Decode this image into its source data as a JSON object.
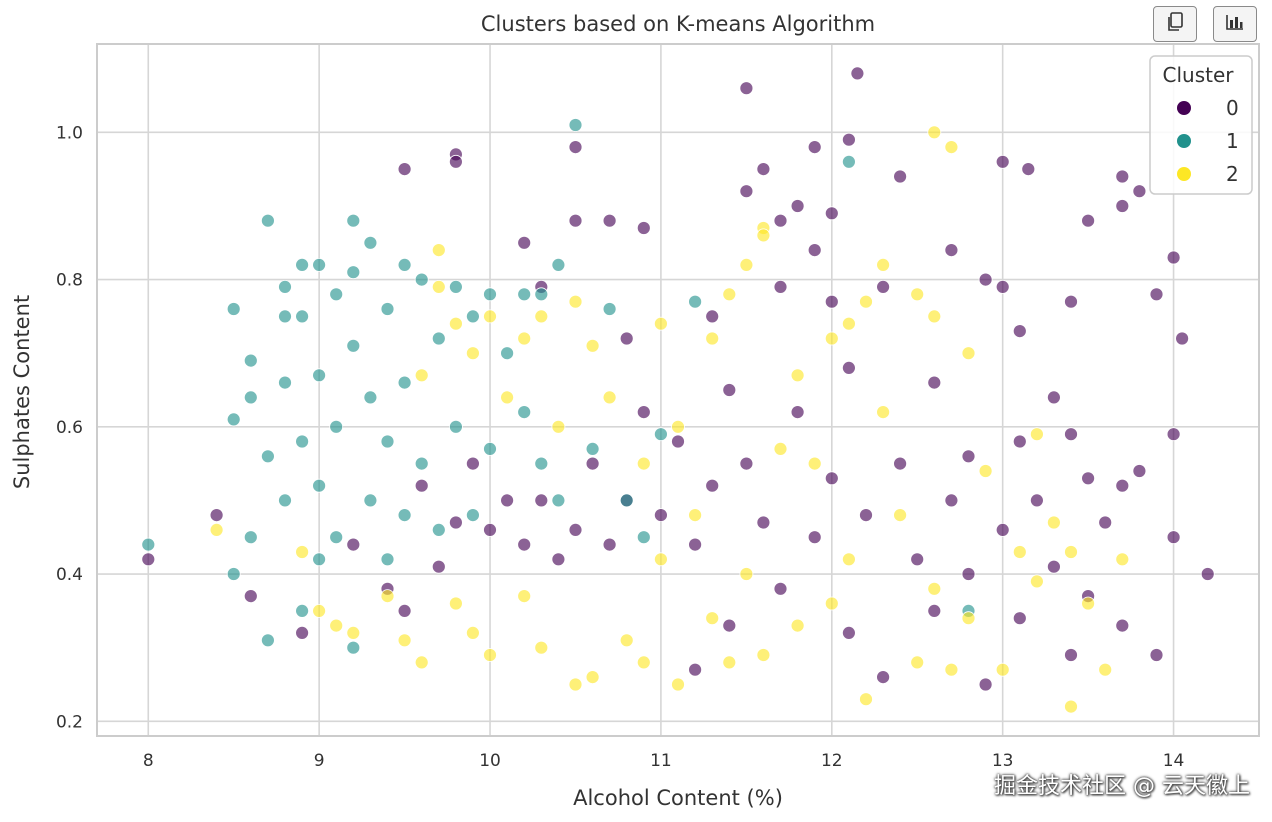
{
  "toolbar": {
    "copy_icon": "copy-icon",
    "chart_icon": "bar-chart-icon"
  },
  "watermark": "掘金技术社区 @ 云天徽上",
  "colors": {
    "cluster0": "#440154",
    "cluster1": "#21918c",
    "cluster2": "#fde725",
    "grid": "#d6d6d6",
    "frame": "#cccccc"
  },
  "chart_data": {
    "type": "scatter",
    "title": "Clusters based on K-means Algorithm",
    "xlabel": "Alcohol Content (%)",
    "ylabel": "Sulphates Content",
    "xlim": [
      7.7,
      14.5
    ],
    "ylim": [
      0.18,
      1.12
    ],
    "xticks": [
      8,
      9,
      10,
      11,
      12,
      13,
      14
    ],
    "yticks": [
      0.2,
      0.4,
      0.6,
      0.8,
      1.0
    ],
    "grid": true,
    "legend": {
      "title": "Cluster",
      "placement": "top-right",
      "entries": [
        "0",
        "1",
        "2"
      ]
    },
    "series": [
      {
        "name": "0",
        "points": [
          [
            8.0,
            0.42
          ],
          [
            8.4,
            0.48
          ],
          [
            8.6,
            0.37
          ],
          [
            8.9,
            0.32
          ],
          [
            9.2,
            0.44
          ],
          [
            9.4,
            0.38
          ],
          [
            9.5,
            0.95
          ],
          [
            9.5,
            0.35
          ],
          [
            9.6,
            0.52
          ],
          [
            9.7,
            0.41
          ],
          [
            9.8,
            0.97
          ],
          [
            9.8,
            0.96
          ],
          [
            9.8,
            0.47
          ],
          [
            9.9,
            0.55
          ],
          [
            10.0,
            0.46
          ],
          [
            10.1,
            0.5
          ],
          [
            10.2,
            0.85
          ],
          [
            10.2,
            0.44
          ],
          [
            10.3,
            0.5
          ],
          [
            10.3,
            0.79
          ],
          [
            10.4,
            0.42
          ],
          [
            10.5,
            0.98
          ],
          [
            10.5,
            0.88
          ],
          [
            10.5,
            0.46
          ],
          [
            10.6,
            0.55
          ],
          [
            10.7,
            0.88
          ],
          [
            10.7,
            0.44
          ],
          [
            10.8,
            0.72
          ],
          [
            10.8,
            0.5
          ],
          [
            10.9,
            0.87
          ],
          [
            10.9,
            0.62
          ],
          [
            11.0,
            0.48
          ],
          [
            11.1,
            0.58
          ],
          [
            11.2,
            0.44
          ],
          [
            11.2,
            0.27
          ],
          [
            11.3,
            0.75
          ],
          [
            11.3,
            0.52
          ],
          [
            11.4,
            0.65
          ],
          [
            11.4,
            0.33
          ],
          [
            11.5,
            1.06
          ],
          [
            11.5,
            0.92
          ],
          [
            11.5,
            0.55
          ],
          [
            11.6,
            0.95
          ],
          [
            11.6,
            0.47
          ],
          [
            11.7,
            0.88
          ],
          [
            11.7,
            0.79
          ],
          [
            11.7,
            0.38
          ],
          [
            11.8,
            0.9
          ],
          [
            11.8,
            0.62
          ],
          [
            11.9,
            0.84
          ],
          [
            11.9,
            0.98
          ],
          [
            11.9,
            0.45
          ],
          [
            12.0,
            0.89
          ],
          [
            12.0,
            0.77
          ],
          [
            12.0,
            0.53
          ],
          [
            12.1,
            0.99
          ],
          [
            12.1,
            0.68
          ],
          [
            12.1,
            0.32
          ],
          [
            12.15,
            1.08
          ],
          [
            12.2,
            0.48
          ],
          [
            12.3,
            0.79
          ],
          [
            12.3,
            0.26
          ],
          [
            12.4,
            0.94
          ],
          [
            12.4,
            0.55
          ],
          [
            12.5,
            0.42
          ],
          [
            12.6,
            0.66
          ],
          [
            12.6,
            0.35
          ],
          [
            12.7,
            0.84
          ],
          [
            12.7,
            0.5
          ],
          [
            12.8,
            0.56
          ],
          [
            12.8,
            0.4
          ],
          [
            12.9,
            0.8
          ],
          [
            12.9,
            0.25
          ],
          [
            13.0,
            0.96
          ],
          [
            13.0,
            0.79
          ],
          [
            13.0,
            0.46
          ],
          [
            13.1,
            0.73
          ],
          [
            13.1,
            0.58
          ],
          [
            13.1,
            0.34
          ],
          [
            13.15,
            0.95
          ],
          [
            13.2,
            0.5
          ],
          [
            13.3,
            0.64
          ],
          [
            13.3,
            0.41
          ],
          [
            13.4,
            0.77
          ],
          [
            13.4,
            0.59
          ],
          [
            13.4,
            0.29
          ],
          [
            13.5,
            0.88
          ],
          [
            13.5,
            0.53
          ],
          [
            13.5,
            0.37
          ],
          [
            13.6,
            0.47
          ],
          [
            13.7,
            0.94
          ],
          [
            13.7,
            0.9
          ],
          [
            13.7,
            0.52
          ],
          [
            13.7,
            0.33
          ],
          [
            13.8,
            0.92
          ],
          [
            13.8,
            0.54
          ],
          [
            13.9,
            0.78
          ],
          [
            13.9,
            0.29
          ],
          [
            14.0,
            0.83
          ],
          [
            14.0,
            0.59
          ],
          [
            14.0,
            0.45
          ],
          [
            14.05,
            0.72
          ],
          [
            14.2,
            0.4
          ]
        ]
      },
      {
        "name": "1",
        "points": [
          [
            8.0,
            0.44
          ],
          [
            8.5,
            0.76
          ],
          [
            8.5,
            0.61
          ],
          [
            8.5,
            0.4
          ],
          [
            8.6,
            0.69
          ],
          [
            8.6,
            0.64
          ],
          [
            8.6,
            0.45
          ],
          [
            8.7,
            0.88
          ],
          [
            8.7,
            0.56
          ],
          [
            8.7,
            0.31
          ],
          [
            8.8,
            0.79
          ],
          [
            8.8,
            0.75
          ],
          [
            8.8,
            0.66
          ],
          [
            8.8,
            0.5
          ],
          [
            8.9,
            0.82
          ],
          [
            8.9,
            0.75
          ],
          [
            8.9,
            0.58
          ],
          [
            8.9,
            0.35
          ],
          [
            9.0,
            0.82
          ],
          [
            9.0,
            0.67
          ],
          [
            9.0,
            0.52
          ],
          [
            9.0,
            0.42
          ],
          [
            9.1,
            0.78
          ],
          [
            9.1,
            0.6
          ],
          [
            9.1,
            0.45
          ],
          [
            9.2,
            0.88
          ],
          [
            9.2,
            0.81
          ],
          [
            9.2,
            0.71
          ],
          [
            9.2,
            0.3
          ],
          [
            9.3,
            0.85
          ],
          [
            9.3,
            0.64
          ],
          [
            9.3,
            0.5
          ],
          [
            9.4,
            0.76
          ],
          [
            9.4,
            0.58
          ],
          [
            9.4,
            0.42
          ],
          [
            9.5,
            0.82
          ],
          [
            9.5,
            0.66
          ],
          [
            9.5,
            0.48
          ],
          [
            9.6,
            0.8
          ],
          [
            9.6,
            0.55
          ],
          [
            9.7,
            0.72
          ],
          [
            9.7,
            0.46
          ],
          [
            9.8,
            0.79
          ],
          [
            9.8,
            0.6
          ],
          [
            9.9,
            0.75
          ],
          [
            9.9,
            0.48
          ],
          [
            10.0,
            0.78
          ],
          [
            10.0,
            0.57
          ],
          [
            10.1,
            0.7
          ],
          [
            10.2,
            0.78
          ],
          [
            10.2,
            0.62
          ],
          [
            10.3,
            0.78
          ],
          [
            10.3,
            0.55
          ],
          [
            10.4,
            0.82
          ],
          [
            10.4,
            0.5
          ],
          [
            10.5,
            1.01
          ],
          [
            10.6,
            0.57
          ],
          [
            10.7,
            0.76
          ],
          [
            10.8,
            0.5
          ],
          [
            10.9,
            0.45
          ],
          [
            11.0,
            0.59
          ],
          [
            11.2,
            0.77
          ],
          [
            12.1,
            0.96
          ],
          [
            12.8,
            0.35
          ]
        ]
      },
      {
        "name": "2",
        "points": [
          [
            8.4,
            0.46
          ],
          [
            8.9,
            0.43
          ],
          [
            9.0,
            0.35
          ],
          [
            9.1,
            0.33
          ],
          [
            9.2,
            0.32
          ],
          [
            9.4,
            0.37
          ],
          [
            9.5,
            0.31
          ],
          [
            9.6,
            0.67
          ],
          [
            9.6,
            0.28
          ],
          [
            9.7,
            0.84
          ],
          [
            9.7,
            0.79
          ],
          [
            9.8,
            0.74
          ],
          [
            9.8,
            0.36
          ],
          [
            9.9,
            0.7
          ],
          [
            9.9,
            0.32
          ],
          [
            10.0,
            0.75
          ],
          [
            10.0,
            0.29
          ],
          [
            10.1,
            0.64
          ],
          [
            10.2,
            0.72
          ],
          [
            10.2,
            0.37
          ],
          [
            10.3,
            0.75
          ],
          [
            10.3,
            0.3
          ],
          [
            10.4,
            0.6
          ],
          [
            10.5,
            0.77
          ],
          [
            10.5,
            0.25
          ],
          [
            10.6,
            0.71
          ],
          [
            10.6,
            0.26
          ],
          [
            10.7,
            0.64
          ],
          [
            10.8,
            0.31
          ],
          [
            10.9,
            0.55
          ],
          [
            10.9,
            0.28
          ],
          [
            11.0,
            0.74
          ],
          [
            11.0,
            0.42
          ],
          [
            11.1,
            0.6
          ],
          [
            11.1,
            0.25
          ],
          [
            11.2,
            0.48
          ],
          [
            11.3,
            0.72
          ],
          [
            11.3,
            0.34
          ],
          [
            11.4,
            0.78
          ],
          [
            11.4,
            0.28
          ],
          [
            11.5,
            0.82
          ],
          [
            11.5,
            0.4
          ],
          [
            11.6,
            0.87
          ],
          [
            11.6,
            0.86
          ],
          [
            11.6,
            0.29
          ],
          [
            11.7,
            0.57
          ],
          [
            11.8,
            0.67
          ],
          [
            11.8,
            0.33
          ],
          [
            11.9,
            0.55
          ],
          [
            12.0,
            0.72
          ],
          [
            12.0,
            0.36
          ],
          [
            12.1,
            0.74
          ],
          [
            12.1,
            0.42
          ],
          [
            12.2,
            0.77
          ],
          [
            12.2,
            0.23
          ],
          [
            12.3,
            0.82
          ],
          [
            12.3,
            0.62
          ],
          [
            12.4,
            0.48
          ],
          [
            12.5,
            0.78
          ],
          [
            12.5,
            0.28
          ],
          [
            12.6,
            1.0
          ],
          [
            12.6,
            0.75
          ],
          [
            12.6,
            0.38
          ],
          [
            12.7,
            0.98
          ],
          [
            12.7,
            0.27
          ],
          [
            12.8,
            0.7
          ],
          [
            12.8,
            0.34
          ],
          [
            12.9,
            0.54
          ],
          [
            13.0,
            0.27
          ],
          [
            13.1,
            0.43
          ],
          [
            13.2,
            0.59
          ],
          [
            13.2,
            0.39
          ],
          [
            13.3,
            0.47
          ],
          [
            13.4,
            0.43
          ],
          [
            13.4,
            0.22
          ],
          [
            13.5,
            0.36
          ],
          [
            13.6,
            0.27
          ],
          [
            13.7,
            0.42
          ]
        ]
      }
    ]
  }
}
